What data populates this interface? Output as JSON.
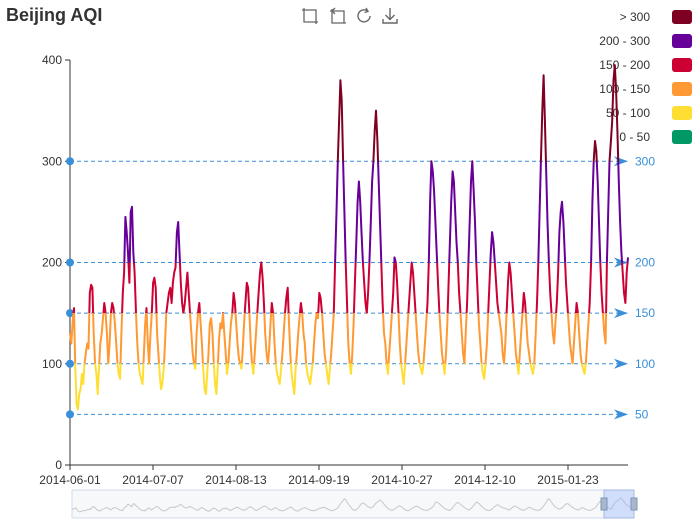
{
  "title": "Beijing AQI",
  "toolbox": [
    "zoom-icon",
    "zoom-reset-icon",
    "restore-icon",
    "save-as-image-icon"
  ],
  "legend": [
    {
      "label": "> 300",
      "color": "#7e0023"
    },
    {
      "label": "200 - 300",
      "color": "#660099"
    },
    {
      "label": "150 - 200",
      "color": "#cc0033"
    },
    {
      "label": "100 - 150",
      "color": "#ff9933"
    },
    {
      "label": "50 - 100",
      "color": "#ffde33"
    },
    {
      "label": "0 - 50",
      "color": "#096"
    }
  ],
  "chart_data": {
    "type": "line",
    "title": "Beijing AQI",
    "x_ticks": [
      "2014-06-01",
      "2014-07-07",
      "2014-08-13",
      "2014-09-19",
      "2014-10-27",
      "2014-12-10",
      "2015-01-23"
    ],
    "y_ticks": [
      "0",
      "100",
      "200",
      "300",
      "400"
    ],
    "ylim": [
      0,
      400
    ],
    "grid": false,
    "legend_position": "top-right",
    "mark_lines": [
      {
        "value": 50,
        "label": "50"
      },
      {
        "value": 100,
        "label": "100"
      },
      {
        "value": 150,
        "label": "150"
      },
      {
        "value": 200,
        "label": "200"
      },
      {
        "value": 300,
        "label": "300"
      }
    ],
    "series": [
      {
        "values": [
          130,
          120,
          140,
          155,
          95,
          60,
          55,
          70,
          75,
          90,
          80,
          100,
          110,
          120,
          115,
          170,
          178,
          175,
          130,
          100,
          90,
          70,
          95,
          120,
          130,
          145,
          160,
          150,
          130,
          100,
          120,
          150,
          160,
          155,
          140,
          120,
          100,
          90,
          85,
          130,
          170,
          190,
          245,
          230,
          210,
          180,
          250,
          255,
          210,
          190,
          150,
          120,
          100,
          90,
          85,
          80,
          110,
          140,
          155,
          120,
          100,
          130,
          150,
          180,
          185,
          175,
          130,
          110,
          90,
          75,
          80,
          95,
          120,
          150,
          160,
          170,
          175,
          160,
          180,
          190,
          195,
          230,
          240,
          210,
          180,
          160,
          150,
          160,
          175,
          190,
          170,
          150,
          130,
          110,
          100,
          95,
          130,
          150,
          160,
          140,
          120,
          95,
          75,
          70,
          90,
          110,
          140,
          145,
          130,
          100,
          80,
          70,
          95,
          125,
          140,
          135,
          150,
          130,
          110,
          90,
          100,
          120,
          140,
          150,
          170,
          160,
          140,
          120,
          105,
          100,
          95,
          115,
          140,
          160,
          180,
          175,
          150,
          120,
          100,
          90,
          110,
          130,
          150,
          170,
          190,
          200,
          185,
          160,
          130,
          110,
          100,
          115,
          140,
          160,
          150,
          120,
          100,
          90,
          85,
          80,
          95,
          110,
          130,
          150,
          165,
          175,
          140,
          110,
          90,
          80,
          70,
          95,
          110,
          130,
          145,
          160,
          150,
          130,
          120,
          100,
          90,
          85,
          80,
          90,
          100,
          120,
          140,
          150,
          145,
          170,
          165,
          150,
          130,
          110,
          100,
          90,
          80,
          95,
          110,
          130,
          150,
          200,
          250,
          300,
          340,
          380,
          360,
          300,
          250,
          200,
          160,
          120,
          100,
          90,
          110,
          140,
          180,
          220,
          260,
          280,
          260,
          230,
          200,
          180,
          160,
          150,
          170,
          200,
          240,
          280,
          300,
          330,
          350,
          320,
          280,
          240,
          200,
          160,
          130,
          120,
          100,
          90,
          110,
          130,
          150,
          170,
          205,
          200,
          180,
          150,
          120,
          100,
          90,
          80,
          100,
          120,
          140,
          160,
          180,
          200,
          190,
          170,
          150,
          130,
          110,
          100,
          95,
          90,
          100,
          120,
          140,
          160,
          200,
          260,
          300,
          290,
          270,
          240,
          210,
          180,
          150,
          130,
          110,
          100,
          90,
          110,
          140,
          180,
          220,
          260,
          290,
          280,
          250,
          220,
          200,
          170,
          150,
          130,
          110,
          100,
          130,
          160,
          200,
          240,
          280,
          300,
          270,
          240,
          200,
          170,
          140,
          120,
          100,
          90,
          85,
          100,
          120,
          150,
          180,
          210,
          230,
          220,
          200,
          180,
          160,
          150,
          140,
          130,
          110,
          100,
          120,
          150,
          180,
          200,
          190,
          170,
          150,
          130,
          110,
          100,
          90,
          110,
          130,
          150,
          170,
          160,
          140,
          120,
          110,
          100,
          95,
          90,
          100,
          130,
          160,
          200,
          250,
          300,
          350,
          385,
          340,
          290,
          240,
          200,
          170,
          150,
          130,
          120,
          140,
          160,
          190,
          230,
          250,
          260,
          240,
          210,
          180,
          160,
          140,
          120,
          110,
          100,
          120,
          140,
          160,
          150,
          130,
          110,
          100,
          95,
          90,
          100,
          120,
          140,
          160,
          200,
          260,
          300,
          320,
          310,
          280,
          240,
          200,
          170,
          150,
          130,
          120,
          200,
          250,
          300,
          320,
          340,
          380,
          395,
          370,
          330,
          280,
          240,
          210,
          190,
          170,
          160,
          190,
          205
        ]
      }
    ]
  }
}
